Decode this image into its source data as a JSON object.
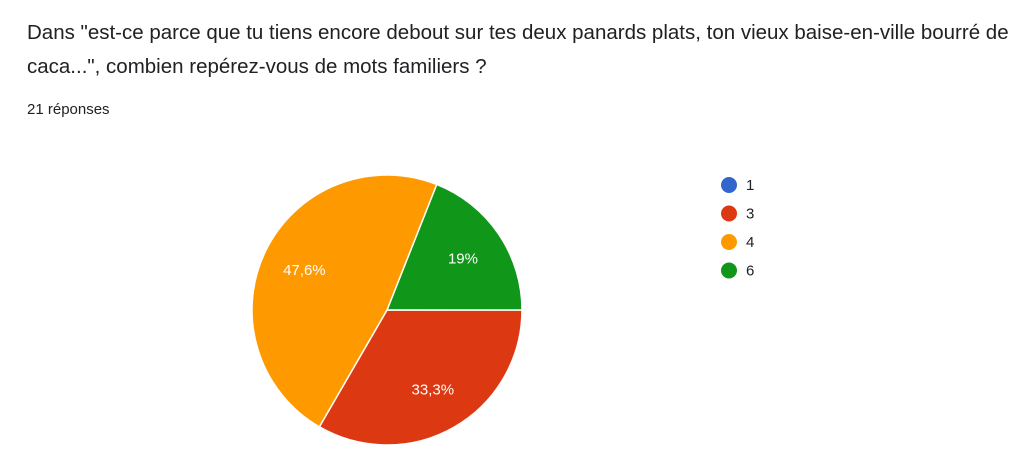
{
  "question": {
    "title": "Dans \"est-ce parce que tu tiens encore debout sur tes deux panards plats, ton vieux baise-en-ville bourré de caca...\", combien repérez-vous de mots familiers ?",
    "response_count": "21 réponses"
  },
  "chart_data": {
    "type": "pie",
    "title": "",
    "legend_position": "right",
    "slices": [
      {
        "label": "1",
        "value": 0,
        "display": "",
        "color": "#3366cc"
      },
      {
        "label": "3",
        "value": 33.3,
        "display": "33,3%",
        "color": "#dc3912"
      },
      {
        "label": "4",
        "value": 47.6,
        "display": "47,6%",
        "color": "#ff9900"
      },
      {
        "label": "6",
        "value": 19,
        "display": "19%",
        "color": "#109618"
      }
    ]
  }
}
